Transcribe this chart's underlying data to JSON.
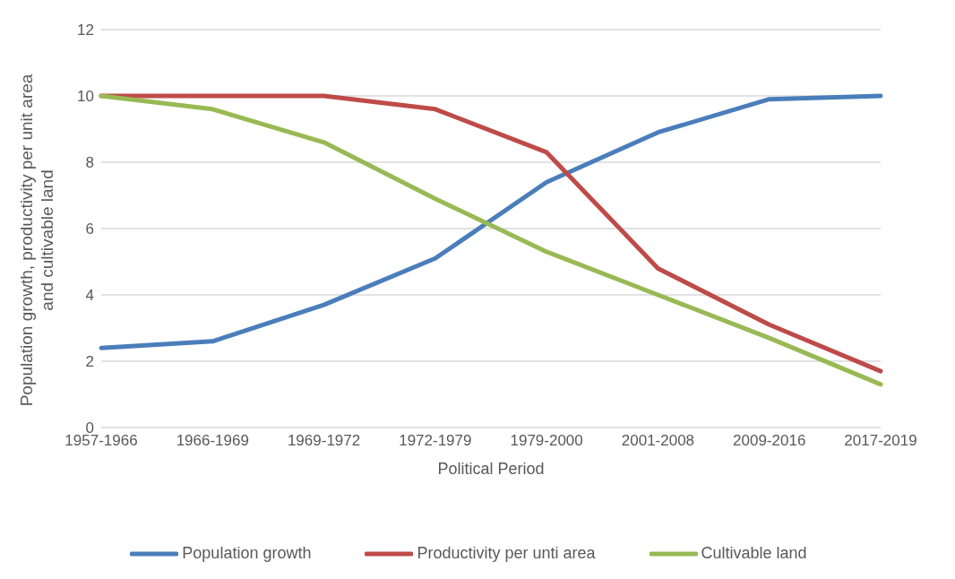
{
  "chart_data": {
    "type": "line",
    "xlabel": "Political Period",
    "ylabel": "Population growth, productivity per unit area and cultivable land",
    "categories": [
      "1957-1966",
      "1966-1969",
      "1969-1972",
      "1972-1979",
      "1979-2000",
      "2001-2008",
      "2009-2016",
      "2017-2019"
    ],
    "series": [
      {
        "name": "Population growth",
        "color": "#4a7ebb",
        "values": [
          2.4,
          2.6,
          3.7,
          5.1,
          7.4,
          8.9,
          9.9,
          10.0
        ]
      },
      {
        "name": "Productivity per unti area",
        "color": "#be4b48",
        "values": [
          10,
          10,
          10,
          9.6,
          8.3,
          4.8,
          3.1,
          1.7
        ]
      },
      {
        "name": "Cultivable land",
        "color": "#98b954",
        "values": [
          10,
          9.6,
          8.6,
          6.9,
          5.3,
          4.0,
          2.7,
          1.3
        ]
      }
    ],
    "ylim": [
      0,
      12
    ],
    "yticks": [
      0,
      2,
      4,
      6,
      8,
      10,
      12
    ],
    "grid": "y",
    "legend": "bottom",
    "marker": "none",
    "line_style": "solid"
  }
}
